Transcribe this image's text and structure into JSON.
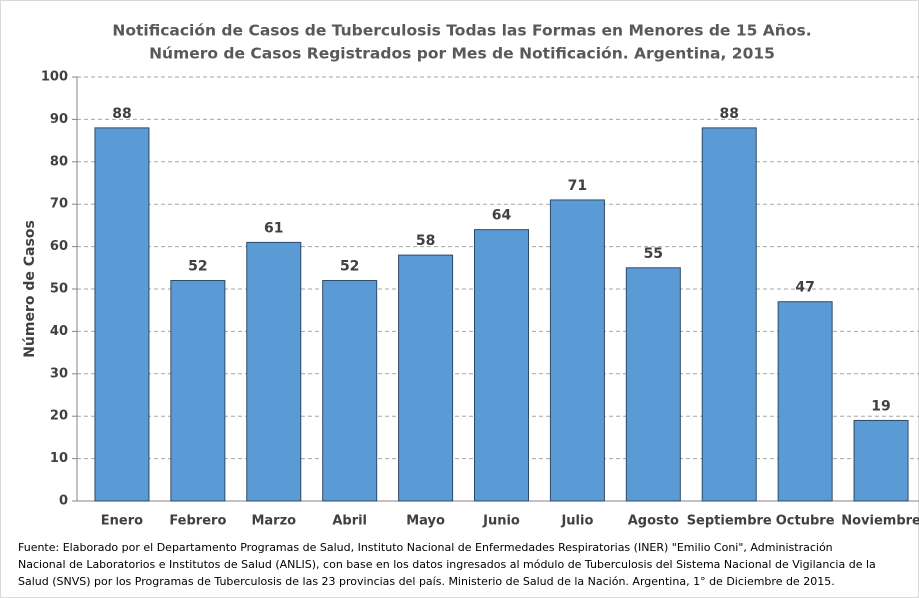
{
  "chart_data": {
    "type": "bar",
    "title": "Notificación de Casos de Tuberculosis Todas las Formas en Menores de 15 Años.",
    "subtitle": "Número de Casos Registrados por Mes de Notificación. Argentina, 2015",
    "y_label": "Número de Casos",
    "categories": [
      "Enero",
      "Febrero",
      "Marzo",
      "Abril",
      "Mayo",
      "Junio",
      "Julio",
      "Agosto",
      "Septiembre",
      "Octubre",
      "Noviembre"
    ],
    "values": [
      88,
      52,
      61,
      52,
      58,
      64,
      71,
      55,
      88,
      47,
      19
    ],
    "color": "#5b9bd5",
    "ylim": [
      0,
      100
    ],
    "yticks": [
      0,
      10,
      20,
      30,
      40,
      50,
      60,
      70,
      80,
      90,
      100
    ],
    "grid": true,
    "source": [
      "Fuente: Elaborado por el Departamento Programas de Salud, Instituto Nacional de Enfermedades Respiratorias (INER) \"Emilio Coni\", Administración",
      "Nacional de Laboratorios e Institutos de Salud (ANLIS), con base en los datos ingresados al módulo de Tuberculosis del Sistema Nacional de Vigilancia de la",
      "Salud (SNVS) por los Programas de Tuberculosis de las 23 provincias del país. Ministerio de Salud de la Nación. Argentina,  1° de Diciembre de 2015."
    ]
  }
}
